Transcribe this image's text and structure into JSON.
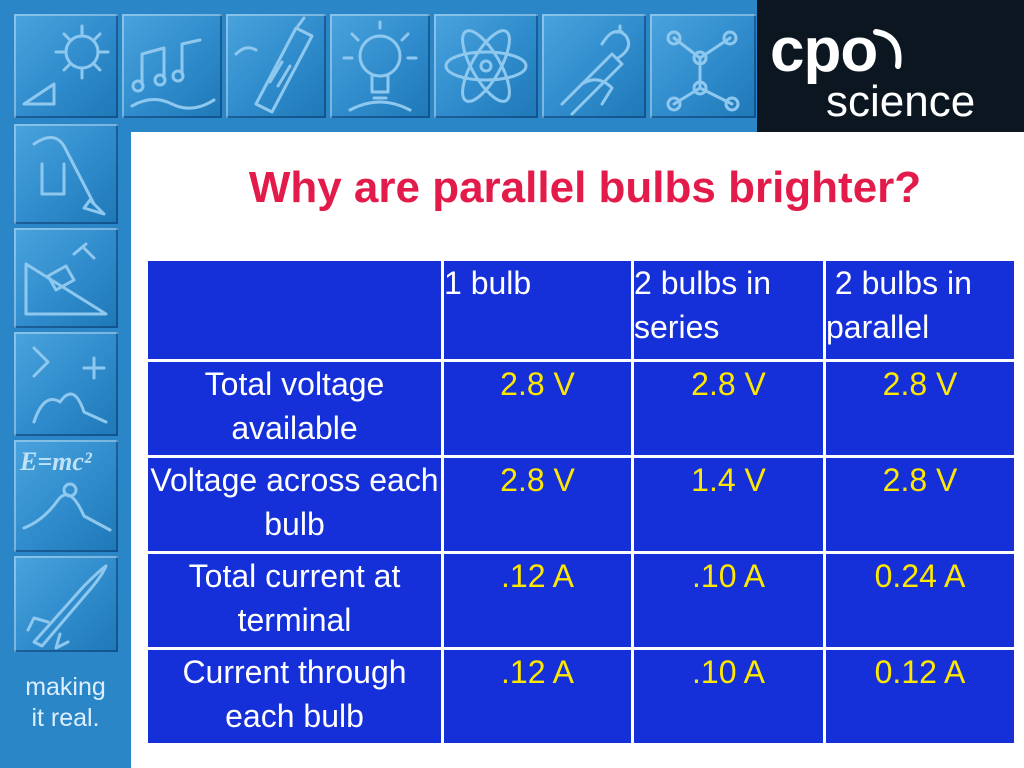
{
  "brand": {
    "logo_word": "cpo",
    "logo_subword": "science",
    "tagline_line1": "making",
    "tagline_line2": "it real."
  },
  "colors": {
    "frame_blue": "#2a86c6",
    "table_blue": "#1530d8",
    "title_red": "#e31b4a",
    "value_yellow": "#ffe800"
  },
  "frame_icons": [
    "sun-icon",
    "music-notes-icon",
    "battery-icon",
    "lightbulb-icon",
    "atom-icon",
    "hand-pencil-icon",
    "molecule-icon",
    "pendulum-icon",
    "ramp-icon",
    "vector-graph-icon",
    "emc2-icon",
    "rocket-icon"
  ],
  "title": "Why are parallel bulbs brighter?",
  "table": {
    "headers": [
      "",
      "1 bulb",
      "2 bulbs in series",
      " 2 bulbs in parallel"
    ],
    "rows": [
      {
        "label": "Total voltage available",
        "values": [
          "2.8 V",
          "2.8 V",
          "2.8 V"
        ]
      },
      {
        "label": "Voltage across each bulb",
        "values": [
          "2.8 V",
          "1.4 V",
          "2.8 V"
        ]
      },
      {
        "label": "Total current at terminal",
        "values": [
          ".12 A",
          ".10 A",
          "0.24 A"
        ]
      },
      {
        "label": "Current through each bulb",
        "values": [
          ".12 A",
          ".10 A",
          "0.12 A"
        ]
      }
    ]
  },
  "extra": {
    "emc2_text": "E=mc²"
  }
}
